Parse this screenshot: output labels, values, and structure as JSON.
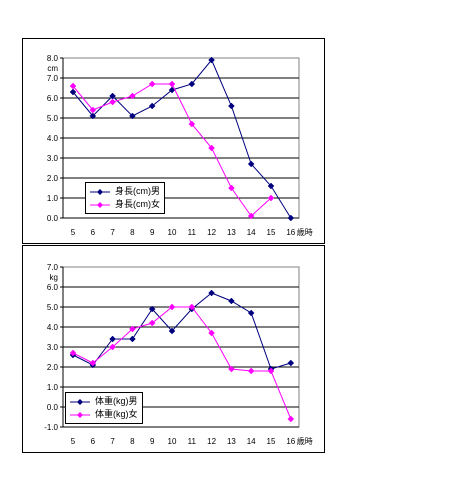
{
  "chart_data": [
    {
      "type": "line",
      "ylabel": "cm",
      "xlabel": "歳時",
      "categories": [
        "5",
        "6",
        "7",
        "8",
        "9",
        "10",
        "11",
        "12",
        "13",
        "14",
        "15",
        "16"
      ],
      "yticks": [
        "0.0",
        "1.0",
        "2.0",
        "3.0",
        "4.0",
        "5.0",
        "6.0",
        "7.0",
        "8.0"
      ],
      "ylim": [
        0,
        8
      ],
      "grid": true,
      "legend_position": "bottom-left",
      "series": [
        {
          "name": "身長(cm)男",
          "color": "#00007f",
          "marker": "diamond",
          "values": [
            6.3,
            5.1,
            6.1,
            5.1,
            5.6,
            6.4,
            6.7,
            7.9,
            5.6,
            2.7,
            1.6,
            0.0
          ]
        },
        {
          "name": "身長(cm)女",
          "color": "#ff00ff",
          "marker": "diamond",
          "values": [
            6.6,
            5.4,
            5.8,
            6.1,
            6.7,
            6.7,
            4.7,
            3.5,
            1.5,
            0.1,
            1.0,
            null
          ]
        }
      ]
    },
    {
      "type": "line",
      "ylabel": "kg",
      "xlabel": "歳時",
      "categories": [
        "5",
        "6",
        "7",
        "8",
        "9",
        "10",
        "11",
        "12",
        "13",
        "14",
        "15",
        "16"
      ],
      "yticks": [
        "-1.0",
        "0.0",
        "1.0",
        "2.0",
        "3.0",
        "4.0",
        "5.0",
        "6.0",
        "7.0"
      ],
      "ylim": [
        -1,
        7
      ],
      "grid": true,
      "legend_position": "bottom-left",
      "series": [
        {
          "name": "体重(kg)男",
          "color": "#00007f",
          "marker": "diamond",
          "values": [
            2.6,
            2.1,
            3.4,
            3.4,
            4.9,
            3.8,
            4.9,
            5.7,
            5.3,
            4.7,
            1.9,
            2.2
          ]
        },
        {
          "name": "体重(kg)女",
          "color": "#ff00ff",
          "marker": "diamond",
          "values": [
            2.7,
            2.2,
            3.0,
            3.9,
            4.2,
            5.0,
            5.0,
            3.7,
            1.9,
            1.8,
            1.8,
            -0.6
          ]
        }
      ]
    }
  ]
}
